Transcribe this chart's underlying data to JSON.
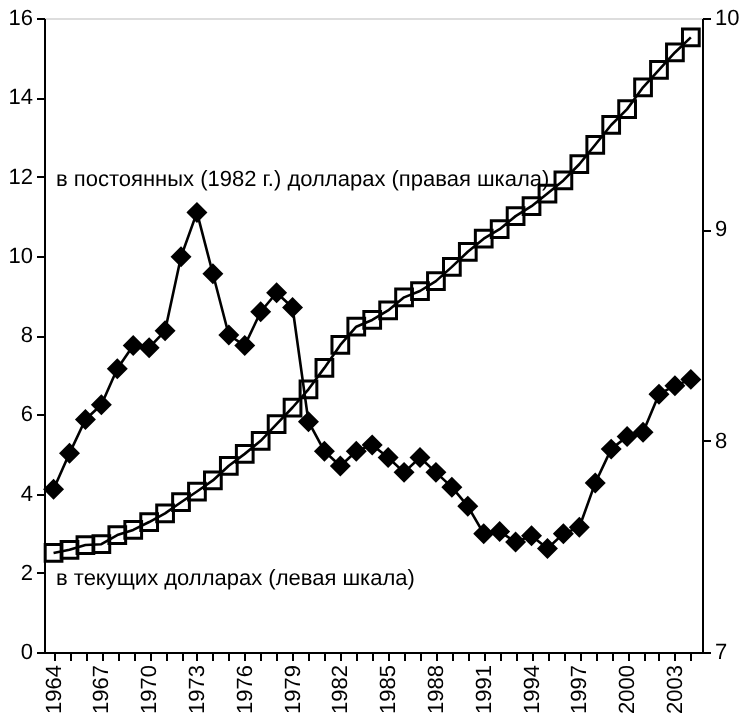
{
  "chart_data": {
    "type": "line",
    "x": [
      1964,
      1965,
      1966,
      1967,
      1968,
      1969,
      1970,
      1971,
      1972,
      1973,
      1974,
      1975,
      1976,
      1977,
      1978,
      1979,
      1980,
      1981,
      1982,
      1983,
      1984,
      1985,
      1986,
      1987,
      1988,
      1989,
      1990,
      1991,
      1992,
      1993,
      1994,
      1995,
      1996,
      1997,
      1998,
      1999,
      2000,
      2001,
      2002,
      2003,
      2004
    ],
    "series": [
      {
        "color": "#000000",
        "marker": "diamond",
        "axis": "y2",
        "values": [
          7.77,
          7.94,
          8.1,
          8.17,
          8.34,
          8.45,
          8.44,
          8.52,
          8.87,
          9.08,
          8.79,
          8.5,
          8.45,
          8.61,
          8.7,
          8.63,
          8.09,
          7.95,
          7.88,
          7.95,
          7.98,
          7.92,
          7.85,
          7.92,
          7.85,
          7.78,
          7.69,
          7.56,
          7.57,
          7.52,
          7.55,
          7.49,
          7.56,
          7.59,
          7.8,
          7.96,
          8.02,
          8.04,
          8.22,
          8.26,
          8.29
        ]
      },
      {
        "color": "#000000",
        "marker": "square",
        "values": [
          2.5,
          2.58,
          2.7,
          2.72,
          2.95,
          3.08,
          3.28,
          3.5,
          3.78,
          4.05,
          4.33,
          4.7,
          5.0,
          5.33,
          5.75,
          6.17,
          6.63,
          7.17,
          7.75,
          8.21,
          8.38,
          8.62,
          8.95,
          9.11,
          9.36,
          9.72,
          10.1,
          10.43,
          10.67,
          11.0,
          11.25,
          11.57,
          11.9,
          12.31,
          12.8,
          13.3,
          13.7,
          14.25,
          14.69,
          15.13,
          15.51
        ]
      }
    ],
    "annotations": [
      "в постоянных (1982 г.) долларах (правая шкала)",
      "в текущих долларах (левая шкала)"
    ],
    "xlim": [
      1963.4,
      2004.7
    ],
    "xticks": [
      1964,
      {
        "value": 1965,
        "label": null
      },
      {
        "value": 1966,
        "label": null
      },
      1967,
      {
        "value": 1968,
        "label": null
      },
      {
        "value": 1969,
        "label": null
      },
      1970,
      {
        "value": 1971,
        "label": null
      },
      {
        "value": 1972,
        "label": null
      },
      1973,
      {
        "value": 1974,
        "label": null
      },
      {
        "value": 1975,
        "label": null
      },
      1976,
      {
        "value": 1977,
        "label": null
      },
      {
        "value": 1978,
        "label": null
      },
      1979,
      {
        "value": 1980,
        "label": null
      },
      {
        "value": 1981,
        "label": null
      },
      1982,
      {
        "value": 1983,
        "label": null
      },
      {
        "value": 1984,
        "label": null
      },
      1985,
      {
        "value": 1986,
        "label": null
      },
      {
        "value": 1987,
        "label": null
      },
      1988,
      {
        "value": 1989,
        "label": null
      },
      {
        "value": 1990,
        "label": null
      },
      1991,
      {
        "value": 1992,
        "label": null
      },
      {
        "value": 1993,
        "label": null
      },
      1994,
      {
        "value": 1995,
        "label": null
      },
      {
        "value": 1996,
        "label": null
      },
      1997,
      {
        "value": 1998,
        "label": null
      },
      {
        "value": 1999,
        "label": null
      },
      2000,
      {
        "value": 2001,
        "label": null
      },
      {
        "value": 2002,
        "label": null
      },
      2003,
      {
        "value": 2004,
        "label": null
      }
    ],
    "ylim": [
      0,
      16
    ],
    "yticks": [
      0,
      2,
      4,
      6,
      8,
      10,
      12,
      14,
      16
    ],
    "y2lim": [
      7,
      10
    ],
    "y2ticks": [
      7,
      8,
      9,
      10
    ],
    "grid": false,
    "line_style": "solid"
  }
}
